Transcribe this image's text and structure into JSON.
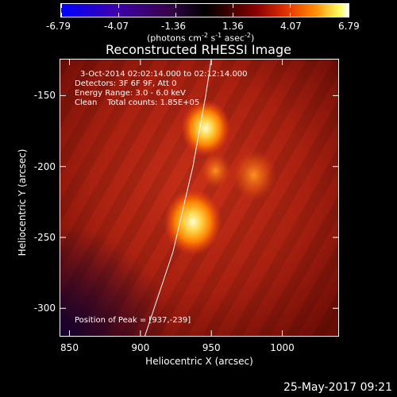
{
  "colorbar": {
    "min": -6.79,
    "max": 6.79,
    "tick_labels": [
      "-6.79",
      "-4.07",
      "-1.36",
      "1.36",
      "4.07",
      "6.79"
    ],
    "units_base": "(photons cm",
    "units_sup1": "-2",
    "units_mid": " s",
    "units_sup2": "-1",
    "units_end": " asec",
    "units_sup3": "-2",
    "units_close": ")"
  },
  "title": "Reconstructed RHESSI Image",
  "info": {
    "time": "3-Oct-2014 02:02:14.000 to 02:12:14.000",
    "detectors": "Detectors: 3F 6F 9F, Att 0",
    "energy": "Energy Range: 3.0 - 6.0 keV",
    "clean": "Clean    Total counts: 1.85E+05",
    "peak": "Position of Peak = [937,-239]"
  },
  "footer_date": "25-May-2017 09:21",
  "chart_data": {
    "type": "heatmap",
    "title": "Reconstructed RHESSI Image",
    "xlabel": "Heliocentric X (arcsec)",
    "ylabel": "Heliocentric Y (arcsec)",
    "xlim": [
      843,
      1040
    ],
    "ylim": [
      -320,
      -124
    ],
    "x_ticks": [
      850,
      900,
      950,
      1000
    ],
    "y_ticks": [
      -150,
      -200,
      -250,
      -300
    ],
    "sources": [
      {
        "x": 937,
        "y": -239,
        "peak": 6.79,
        "radius": 13
      },
      {
        "x": 946,
        "y": -173,
        "peak": 5.2,
        "radius": 11
      },
      {
        "x": 953,
        "y": -203,
        "peak": 3.0,
        "radius": 7
      },
      {
        "x": 980,
        "y": -206,
        "peak": 1.5,
        "radius": 10
      }
    ],
    "limb_curve": [
      [
        903,
        -320
      ],
      [
        923,
        -260
      ],
      [
        937,
        -200
      ],
      [
        946,
        -150
      ],
      [
        950,
        -124
      ]
    ],
    "colorbar_range": [
      -6.79,
      6.79
    ]
  }
}
